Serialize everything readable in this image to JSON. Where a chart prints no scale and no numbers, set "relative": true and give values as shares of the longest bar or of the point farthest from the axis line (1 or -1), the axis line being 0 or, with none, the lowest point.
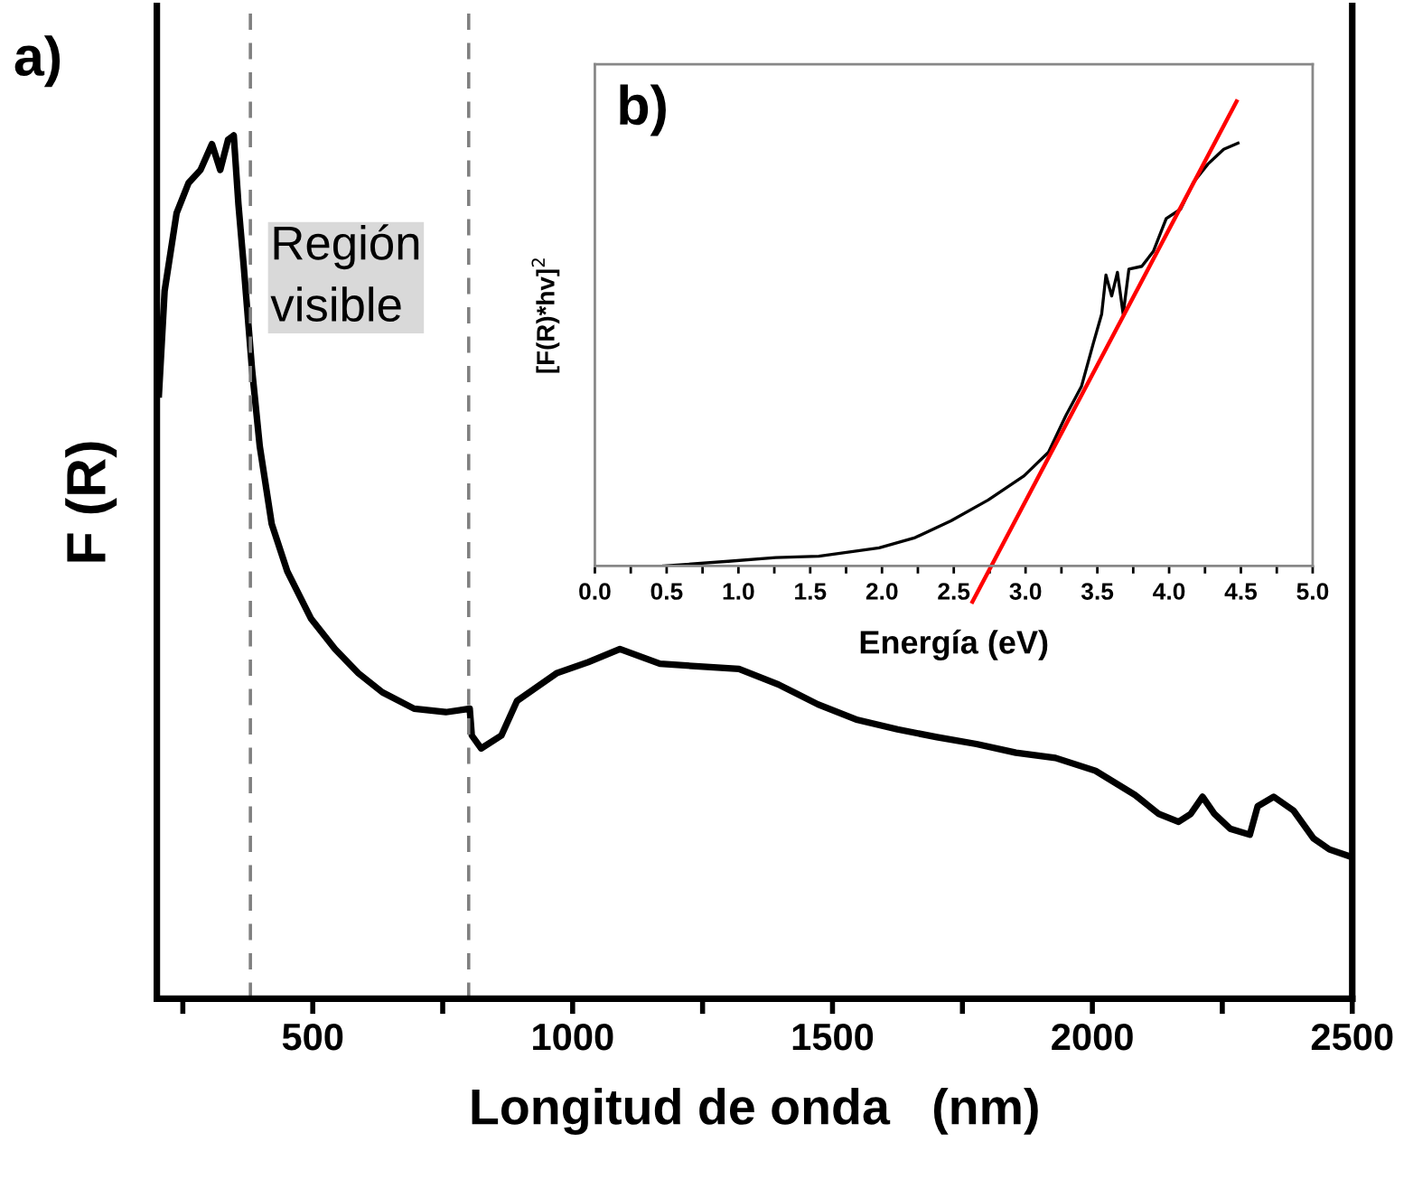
{
  "chart_data": [
    {
      "type": "line",
      "title": "a)",
      "xlabel": "Longitud de onda   (nm)",
      "ylabel": "F (R)",
      "relative": true,
      "xlim": [
        200,
        2500
      ],
      "xticks": [
        {
          "value": 250,
          "label": null
        },
        500,
        {
          "value": 750,
          "label": null
        },
        1000,
        {
          "value": 1250,
          "label": null
        },
        1500,
        {
          "value": 1750,
          "label": null
        },
        2000,
        {
          "value": 2250,
          "label": null
        },
        2500
      ],
      "ref_lines": [
        {
          "axis": "x",
          "value": 380,
          "color": "#808080",
          "line_style": "dashed"
        },
        {
          "axis": "x",
          "value": 800,
          "color": "#808080",
          "line_style": "dashed"
        }
      ],
      "annotations": [
        "Región\nvisible"
      ],
      "grid": false,
      "legend": false,
      "series": [
        {
          "color": "#000000",
          "x": [
            204,
            215,
            238,
            261,
            284,
            306,
            322,
            337,
            348,
            357,
            367,
            383,
            398,
            421,
            451,
            497,
            543,
            588,
            634,
            695,
            756,
            802,
            806,
            824,
            863,
            893,
            969,
            1030,
            1091,
            1168,
            1244,
            1320,
            1396,
            1472,
            1548,
            1625,
            1701,
            1777,
            1853,
            1929,
            2006,
            2082,
            2128,
            2166,
            2189,
            2212,
            2235,
            2265,
            2303,
            2318,
            2349,
            2387,
            2425,
            2456,
            2500
          ],
          "values": [
            0.7,
            0.82,
            0.91,
            0.945,
            0.96,
            0.99,
            0.96,
            0.995,
            1.0,
            0.92,
            0.85,
            0.73,
            0.64,
            0.55,
            0.495,
            0.44,
            0.405,
            0.377,
            0.355,
            0.336,
            0.332,
            0.336,
            0.305,
            0.29,
            0.305,
            0.345,
            0.377,
            0.39,
            0.405,
            0.388,
            0.385,
            0.382,
            0.364,
            0.341,
            0.323,
            0.312,
            0.303,
            0.295,
            0.285,
            0.279,
            0.264,
            0.236,
            0.214,
            0.205,
            0.214,
            0.234,
            0.214,
            0.197,
            0.19,
            0.223,
            0.234,
            0.218,
            0.186,
            0.173,
            0.164
          ]
        }
      ]
    },
    {
      "type": "line",
      "title": "b)",
      "xlabel": "Energía (eV)",
      "ylabel": "[F(R)*hv]$^{2}$",
      "relative": true,
      "xlim": [
        0,
        5
      ],
      "xticks": [
        {
          "value": 0,
          "label": "0.0"
        },
        {
          "value": 0.25,
          "label": null
        },
        0.5,
        {
          "value": 0.75,
          "label": null
        },
        {
          "value": 1,
          "label": "1.0"
        },
        {
          "value": 1.25,
          "label": null
        },
        1.5,
        {
          "value": 1.75,
          "label": null
        },
        {
          "value": 2,
          "label": "2.0"
        },
        {
          "value": 2.25,
          "label": null
        },
        2.5,
        {
          "value": 2.75,
          "label": null
        },
        {
          "value": 3,
          "label": "3.0"
        },
        {
          "value": 3.25,
          "label": null
        },
        3.5,
        {
          "value": 3.75,
          "label": null
        },
        {
          "value": 4,
          "label": "4.0"
        },
        {
          "value": 4.25,
          "label": null
        },
        4.5,
        {
          "value": 4.75,
          "label": null
        },
        {
          "value": 5,
          "label": "5.0"
        }
      ],
      "grid": false,
      "legend": false,
      "series": [
        {
          "color": "#000000",
          "x": [
            0.48,
            0.93,
            1.26,
            1.56,
            1.98,
            2.23,
            2.48,
            2.74,
            2.99,
            3.16,
            3.28,
            3.39,
            3.47,
            3.53,
            3.56,
            3.6,
            3.64,
            3.68,
            3.72,
            3.81,
            3.89,
            3.98,
            4.08,
            4.17,
            4.27,
            4.38,
            4.48
          ],
          "values": [
            0,
            0.01,
            0.018,
            0.021,
            0.039,
            0.061,
            0.097,
            0.142,
            0.194,
            0.245,
            0.323,
            0.387,
            0.477,
            0.542,
            0.626,
            0.581,
            0.632,
            0.542,
            0.639,
            0.645,
            0.677,
            0.748,
            0.768,
            0.826,
            0.865,
            0.897,
            0.91
          ]
        },
        {
          "type": "line",
          "color": "#ff0000",
          "x": [
            2.63,
            4.47
          ],
          "values": [
            -0.077,
            1.0
          ]
        }
      ]
    }
  ]
}
